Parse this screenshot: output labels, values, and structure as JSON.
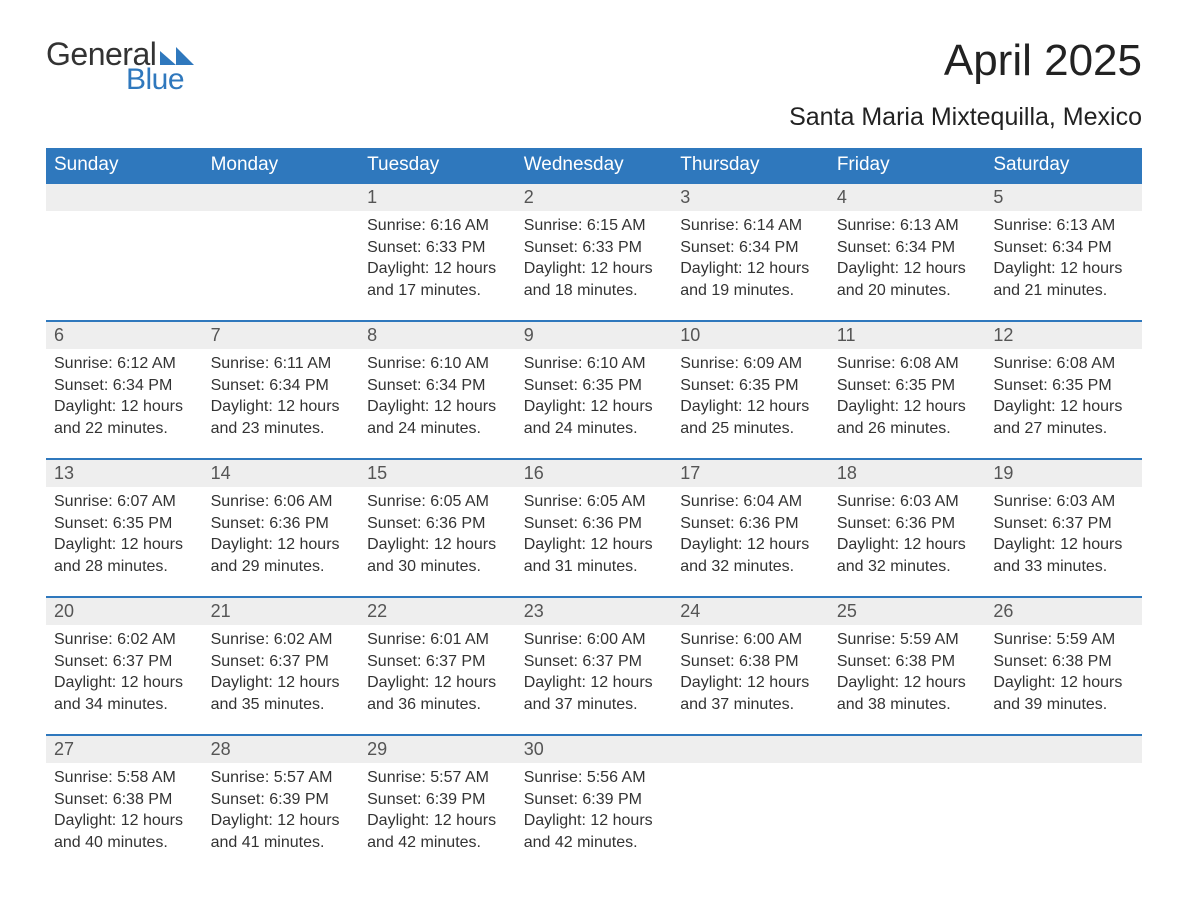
{
  "logo": {
    "word1": "General",
    "word2": "Blue",
    "color1": "#333333",
    "color2": "#2f78bd",
    "shape_color": "#2f78bd"
  },
  "title": "April 2025",
  "subtitle": "Santa Maria Mixtequilla, Mexico",
  "styling": {
    "header_bg": "#2f78bd",
    "header_text": "#ffffff",
    "daynum_bg": "#eeeeee",
    "daynum_text": "#555555",
    "row_border": "#2f78bd",
    "body_text": "#333333",
    "page_bg": "#ffffff",
    "title_fontsize": 44,
    "subtitle_fontsize": 25,
    "header_fontsize": 19,
    "daynum_fontsize": 18,
    "body_fontsize": 16
  },
  "day_headers": [
    "Sunday",
    "Monday",
    "Tuesday",
    "Wednesday",
    "Thursday",
    "Friday",
    "Saturday"
  ],
  "weeks": [
    [
      null,
      null,
      {
        "num": "1",
        "sunrise": "Sunrise: 6:16 AM",
        "sunset": "Sunset: 6:33 PM",
        "day1": "Daylight: 12 hours",
        "day2": "and 17 minutes."
      },
      {
        "num": "2",
        "sunrise": "Sunrise: 6:15 AM",
        "sunset": "Sunset: 6:33 PM",
        "day1": "Daylight: 12 hours",
        "day2": "and 18 minutes."
      },
      {
        "num": "3",
        "sunrise": "Sunrise: 6:14 AM",
        "sunset": "Sunset: 6:34 PM",
        "day1": "Daylight: 12 hours",
        "day2": "and 19 minutes."
      },
      {
        "num": "4",
        "sunrise": "Sunrise: 6:13 AM",
        "sunset": "Sunset: 6:34 PM",
        "day1": "Daylight: 12 hours",
        "day2": "and 20 minutes."
      },
      {
        "num": "5",
        "sunrise": "Sunrise: 6:13 AM",
        "sunset": "Sunset: 6:34 PM",
        "day1": "Daylight: 12 hours",
        "day2": "and 21 minutes."
      }
    ],
    [
      {
        "num": "6",
        "sunrise": "Sunrise: 6:12 AM",
        "sunset": "Sunset: 6:34 PM",
        "day1": "Daylight: 12 hours",
        "day2": "and 22 minutes."
      },
      {
        "num": "7",
        "sunrise": "Sunrise: 6:11 AM",
        "sunset": "Sunset: 6:34 PM",
        "day1": "Daylight: 12 hours",
        "day2": "and 23 minutes."
      },
      {
        "num": "8",
        "sunrise": "Sunrise: 6:10 AM",
        "sunset": "Sunset: 6:34 PM",
        "day1": "Daylight: 12 hours",
        "day2": "and 24 minutes."
      },
      {
        "num": "9",
        "sunrise": "Sunrise: 6:10 AM",
        "sunset": "Sunset: 6:35 PM",
        "day1": "Daylight: 12 hours",
        "day2": "and 24 minutes."
      },
      {
        "num": "10",
        "sunrise": "Sunrise: 6:09 AM",
        "sunset": "Sunset: 6:35 PM",
        "day1": "Daylight: 12 hours",
        "day2": "and 25 minutes."
      },
      {
        "num": "11",
        "sunrise": "Sunrise: 6:08 AM",
        "sunset": "Sunset: 6:35 PM",
        "day1": "Daylight: 12 hours",
        "day2": "and 26 minutes."
      },
      {
        "num": "12",
        "sunrise": "Sunrise: 6:08 AM",
        "sunset": "Sunset: 6:35 PM",
        "day1": "Daylight: 12 hours",
        "day2": "and 27 minutes."
      }
    ],
    [
      {
        "num": "13",
        "sunrise": "Sunrise: 6:07 AM",
        "sunset": "Sunset: 6:35 PM",
        "day1": "Daylight: 12 hours",
        "day2": "and 28 minutes."
      },
      {
        "num": "14",
        "sunrise": "Sunrise: 6:06 AM",
        "sunset": "Sunset: 6:36 PM",
        "day1": "Daylight: 12 hours",
        "day2": "and 29 minutes."
      },
      {
        "num": "15",
        "sunrise": "Sunrise: 6:05 AM",
        "sunset": "Sunset: 6:36 PM",
        "day1": "Daylight: 12 hours",
        "day2": "and 30 minutes."
      },
      {
        "num": "16",
        "sunrise": "Sunrise: 6:05 AM",
        "sunset": "Sunset: 6:36 PM",
        "day1": "Daylight: 12 hours",
        "day2": "and 31 minutes."
      },
      {
        "num": "17",
        "sunrise": "Sunrise: 6:04 AM",
        "sunset": "Sunset: 6:36 PM",
        "day1": "Daylight: 12 hours",
        "day2": "and 32 minutes."
      },
      {
        "num": "18",
        "sunrise": "Sunrise: 6:03 AM",
        "sunset": "Sunset: 6:36 PM",
        "day1": "Daylight: 12 hours",
        "day2": "and 32 minutes."
      },
      {
        "num": "19",
        "sunrise": "Sunrise: 6:03 AM",
        "sunset": "Sunset: 6:37 PM",
        "day1": "Daylight: 12 hours",
        "day2": "and 33 minutes."
      }
    ],
    [
      {
        "num": "20",
        "sunrise": "Sunrise: 6:02 AM",
        "sunset": "Sunset: 6:37 PM",
        "day1": "Daylight: 12 hours",
        "day2": "and 34 minutes."
      },
      {
        "num": "21",
        "sunrise": "Sunrise: 6:02 AM",
        "sunset": "Sunset: 6:37 PM",
        "day1": "Daylight: 12 hours",
        "day2": "and 35 minutes."
      },
      {
        "num": "22",
        "sunrise": "Sunrise: 6:01 AM",
        "sunset": "Sunset: 6:37 PM",
        "day1": "Daylight: 12 hours",
        "day2": "and 36 minutes."
      },
      {
        "num": "23",
        "sunrise": "Sunrise: 6:00 AM",
        "sunset": "Sunset: 6:37 PM",
        "day1": "Daylight: 12 hours",
        "day2": "and 37 minutes."
      },
      {
        "num": "24",
        "sunrise": "Sunrise: 6:00 AM",
        "sunset": "Sunset: 6:38 PM",
        "day1": "Daylight: 12 hours",
        "day2": "and 37 minutes."
      },
      {
        "num": "25",
        "sunrise": "Sunrise: 5:59 AM",
        "sunset": "Sunset: 6:38 PM",
        "day1": "Daylight: 12 hours",
        "day2": "and 38 minutes."
      },
      {
        "num": "26",
        "sunrise": "Sunrise: 5:59 AM",
        "sunset": "Sunset: 6:38 PM",
        "day1": "Daylight: 12 hours",
        "day2": "and 39 minutes."
      }
    ],
    [
      {
        "num": "27",
        "sunrise": "Sunrise: 5:58 AM",
        "sunset": "Sunset: 6:38 PM",
        "day1": "Daylight: 12 hours",
        "day2": "and 40 minutes."
      },
      {
        "num": "28",
        "sunrise": "Sunrise: 5:57 AM",
        "sunset": "Sunset: 6:39 PM",
        "day1": "Daylight: 12 hours",
        "day2": "and 41 minutes."
      },
      {
        "num": "29",
        "sunrise": "Sunrise: 5:57 AM",
        "sunset": "Sunset: 6:39 PM",
        "day1": "Daylight: 12 hours",
        "day2": "and 42 minutes."
      },
      {
        "num": "30",
        "sunrise": "Sunrise: 5:56 AM",
        "sunset": "Sunset: 6:39 PM",
        "day1": "Daylight: 12 hours",
        "day2": "and 42 minutes."
      },
      null,
      null,
      null
    ]
  ]
}
